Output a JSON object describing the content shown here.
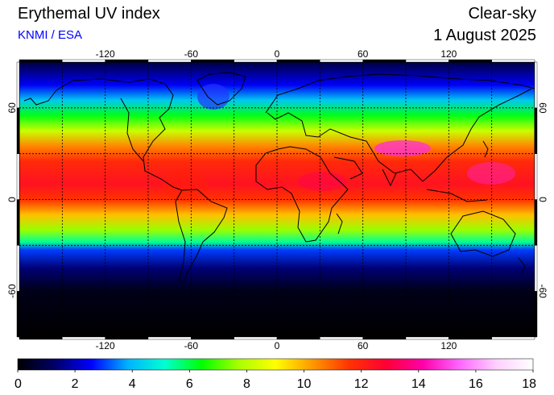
{
  "header": {
    "title": "Erythemal UV index",
    "subtitle": "KNMI / ESA",
    "mode": "Clear-sky",
    "date": "1 August 2025"
  },
  "map": {
    "lon_ticks": [
      "-120",
      "-60",
      "0",
      "60",
      "120"
    ],
    "lat_ticks": [
      "60",
      "0",
      "-60"
    ],
    "lon_range": [
      -180,
      180
    ],
    "lat_range": [
      -90,
      90
    ],
    "grid": "dotted 30-degree graticule",
    "projection": "equirectangular"
  },
  "colorbar": {
    "tick_labels": [
      "0",
      "2",
      "4",
      "6",
      "8",
      "10",
      "12",
      "14",
      "16",
      "18"
    ],
    "range": [
      0,
      18
    ],
    "colors": [
      "#000000",
      "#000066",
      "#0000ff",
      "#00b4ff",
      "#00ffd0",
      "#00ff00",
      "#a8ff00",
      "#ffff00",
      "#ff9900",
      "#ff3300",
      "#ff0033",
      "#ff00aa",
      "#ff66ff",
      "#ffd0ff",
      "#ffffff"
    ]
  },
  "uv_bands": [
    {
      "lat": 90,
      "uv": 0.8
    },
    {
      "lat": 75,
      "uv": 2.5
    },
    {
      "lat": 65,
      "uv": 4.2
    },
    {
      "lat": 55,
      "uv": 6.3
    },
    {
      "lat": 45,
      "uv": 8.2
    },
    {
      "lat": 35,
      "uv": 10.5
    },
    {
      "lat": 25,
      "uv": 11.8
    },
    {
      "lat": 10,
      "uv": 12.4
    },
    {
      "lat": 0,
      "uv": 11.6
    },
    {
      "lat": -10,
      "uv": 9.8
    },
    {
      "lat": -20,
      "uv": 7.6
    },
    {
      "lat": -28,
      "uv": 5.5
    },
    {
      "lat": -33,
      "uv": 3.0
    },
    {
      "lat": -45,
      "uv": 1.4
    },
    {
      "lat": -60,
      "uv": 0.3
    },
    {
      "lat": -90,
      "uv": 0.0
    }
  ]
}
